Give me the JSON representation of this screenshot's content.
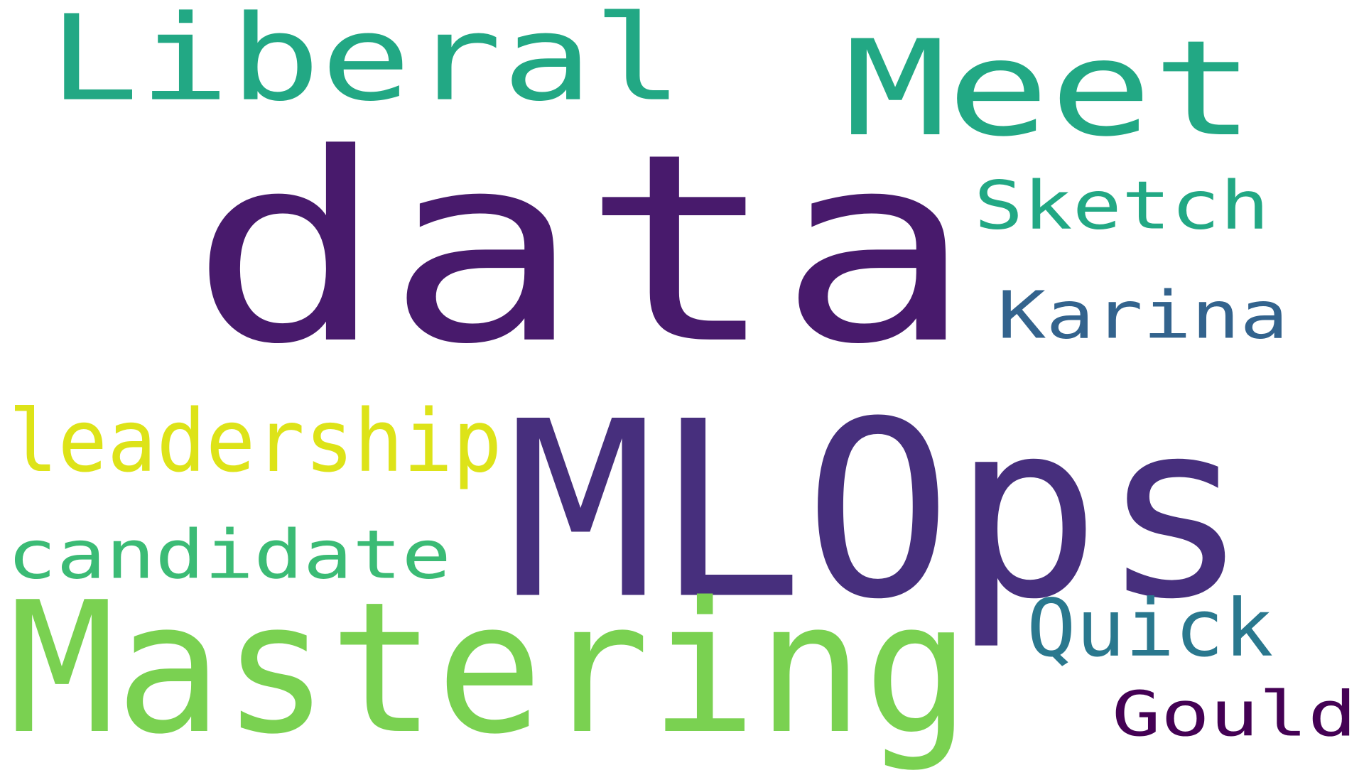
{
  "words": [
    {
      "id": "data",
      "text": "data",
      "color": "#481a6c"
    },
    {
      "id": "mlops",
      "text": "MLOps",
      "color": "#472f7d"
    },
    {
      "id": "mastering",
      "text": "Mastering",
      "color": "#7ad151"
    },
    {
      "id": "liberal",
      "text": "Liberal",
      "color": "#22a884"
    },
    {
      "id": "meet",
      "text": "Meet",
      "color": "#22a884"
    },
    {
      "id": "sketch",
      "text": "Sketch",
      "color": "#22a884"
    },
    {
      "id": "karina",
      "text": "Karina",
      "color": "#33638d"
    },
    {
      "id": "leadership",
      "text": "leadership",
      "color": "#dde318"
    },
    {
      "id": "candidate",
      "text": "candidate",
      "color": "#3bbb75"
    },
    {
      "id": "quick",
      "text": "Quick",
      "color": "#2a788e"
    },
    {
      "id": "gould",
      "text": "Gould",
      "color": "#440154"
    }
  ]
}
